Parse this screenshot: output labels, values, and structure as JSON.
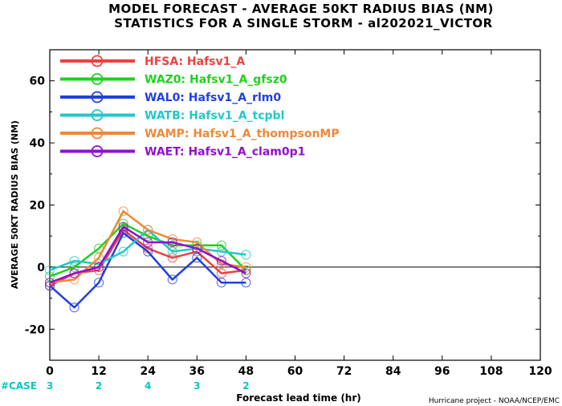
{
  "chart_data": {
    "type": "line",
    "title": "MODEL FORECAST - AVERAGE 50KT RADIUS BIAS (NM)",
    "subtitle": "STATISTICS FOR A SINGLE STORM - al202021_VICTOR",
    "xlabel": "Forecast lead time (hr)",
    "ylabel": "AVERAGE 50KT RADIUS BIAS (NM)",
    "credit": "Hurricane project - NOAA/NCEP/EMC",
    "xlim": [
      0,
      120
    ],
    "ylim": [
      -30,
      70
    ],
    "xticks": [
      0,
      12,
      24,
      36,
      48,
      60,
      72,
      84,
      96,
      108,
      120
    ],
    "yticks": [
      -20,
      0,
      20,
      40,
      60
    ],
    "zero_line": true,
    "legend_position": "top-left",
    "case_label": "#CASE",
    "cases": [
      {
        "x": 0,
        "count": "3"
      },
      {
        "x": 12,
        "count": "2"
      },
      {
        "x": 24,
        "count": "4"
      },
      {
        "x": 36,
        "count": "3"
      },
      {
        "x": 48,
        "count": "2"
      }
    ],
    "x": [
      0,
      6,
      12,
      18,
      24,
      30,
      36,
      42,
      48
    ],
    "series": [
      {
        "name": "HFSA: Hafsv1_A",
        "color": "#f04040",
        "values": [
          -6,
          -2,
          -1,
          12,
          6,
          3,
          5,
          -2,
          -1
        ]
      },
      {
        "name": "WAZ0: Hafsv1_A_gfsz0",
        "color": "#20d020",
        "values": [
          -3,
          0,
          6,
          14,
          10,
          7,
          7,
          7,
          -1
        ]
      },
      {
        "name": "WAL0: Hafsv1_A_rlm0",
        "color": "#2040e0",
        "values": [
          -6,
          -13,
          -5,
          11,
          5,
          -4,
          3,
          -5,
          -5
        ]
      },
      {
        "name": "WATB: Hafsv1_A_tcpbl",
        "color": "#20c8c8",
        "values": [
          -1,
          2,
          1,
          5,
          12,
          5,
          6,
          5,
          4
        ]
      },
      {
        "name": "WAMP: Hafsv1_A_thompsonMP",
        "color": "#f08838",
        "values": [
          -5,
          -4,
          3,
          18,
          12,
          9,
          8,
          1,
          0
        ]
      },
      {
        "name": "WAET: Hafsv1_A_clam0p1",
        "color": "#9010d0",
        "values": [
          -5,
          -2,
          0,
          13,
          8,
          8,
          6,
          2,
          -2
        ]
      }
    ]
  }
}
